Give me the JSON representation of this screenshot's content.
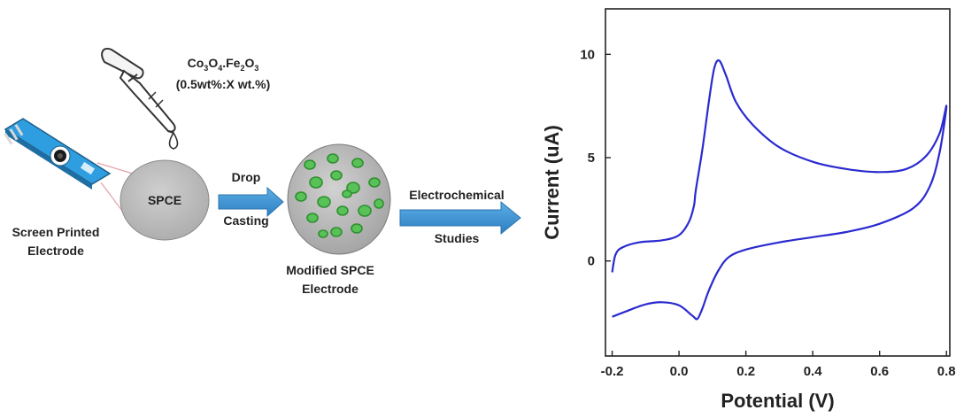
{
  "diagram": {
    "precursor_formula_main": "Co",
    "precursor_formula_sub1": "3",
    "precursor_formula_mid1": "O",
    "precursor_formula_sub2": "4",
    "precursor_formula_mid2": ".Fe",
    "precursor_formula_sub3": "2",
    "precursor_formula_mid3": "O",
    "precursor_formula_sub4": "3",
    "precursor_ratio": "(0.5wt%:X wt.%)",
    "electrode_name_line1": "Screen Printed",
    "electrode_name_line2": "Electrode",
    "spce_label": "SPCE",
    "step1_line1": "Drop",
    "step1_line2": "Casting",
    "modified_line1": "Modified SPCE",
    "modified_line2": "Electrode",
    "step2_line1": "Electrochemical",
    "step2_line2": "Studies",
    "colors": {
      "arrow": "#3a8fd0",
      "electrode_strip": "#2f9ee0",
      "spce_disk": "#bdbdbd",
      "particle": "#3fae3f",
      "leader_lines": "#e3a0a8"
    }
  },
  "chart_data": {
    "type": "line",
    "title": "",
    "xlabel": "Potential (V)",
    "ylabel": "Current (uA)",
    "xlim": [
      -0.22,
      0.81
    ],
    "ylim": [
      -4.6,
      12.2
    ],
    "xticks": [
      -0.2,
      0.0,
      0.2,
      0.4,
      0.6,
      0.8
    ],
    "xtick_labels": [
      "-0.2",
      "0.0",
      "0.2",
      "0.4",
      "0.6",
      "0.8"
    ],
    "yticks": [
      0,
      5,
      10
    ],
    "ytick_labels": [
      "0",
      "5",
      "10"
    ],
    "grid": false,
    "line_color": "#2a2ad0",
    "series": [
      {
        "name": "",
        "points": [
          [
            -0.2,
            -0.55
          ],
          [
            -0.19,
            0.3
          ],
          [
            -0.17,
            0.65
          ],
          [
            -0.12,
            0.9
          ],
          [
            -0.05,
            1.0
          ],
          [
            0.0,
            1.25
          ],
          [
            0.03,
            1.9
          ],
          [
            0.045,
            2.7
          ],
          [
            0.05,
            3.4
          ],
          [
            0.07,
            5.4
          ],
          [
            0.09,
            7.8
          ],
          [
            0.105,
            9.3
          ],
          [
            0.12,
            9.7
          ],
          [
            0.14,
            9.0
          ],
          [
            0.17,
            7.7
          ],
          [
            0.22,
            6.6
          ],
          [
            0.3,
            5.5
          ],
          [
            0.4,
            4.8
          ],
          [
            0.5,
            4.45
          ],
          [
            0.6,
            4.3
          ],
          [
            0.68,
            4.45
          ],
          [
            0.74,
            5.1
          ],
          [
            0.78,
            6.2
          ],
          [
            0.8,
            7.5
          ],
          [
            0.78,
            5.3
          ],
          [
            0.75,
            3.6
          ],
          [
            0.7,
            2.55
          ],
          [
            0.6,
            1.8
          ],
          [
            0.5,
            1.4
          ],
          [
            0.4,
            1.15
          ],
          [
            0.3,
            0.9
          ],
          [
            0.2,
            0.55
          ],
          [
            0.15,
            0.2
          ],
          [
            0.12,
            -0.4
          ],
          [
            0.09,
            -1.4
          ],
          [
            0.07,
            -2.3
          ],
          [
            0.055,
            -2.8
          ],
          [
            0.04,
            -2.65
          ],
          [
            0.0,
            -2.15
          ],
          [
            -0.05,
            -2.0
          ],
          [
            -0.1,
            -2.1
          ],
          [
            -0.16,
            -2.45
          ],
          [
            -0.2,
            -2.7
          ]
        ]
      }
    ]
  }
}
